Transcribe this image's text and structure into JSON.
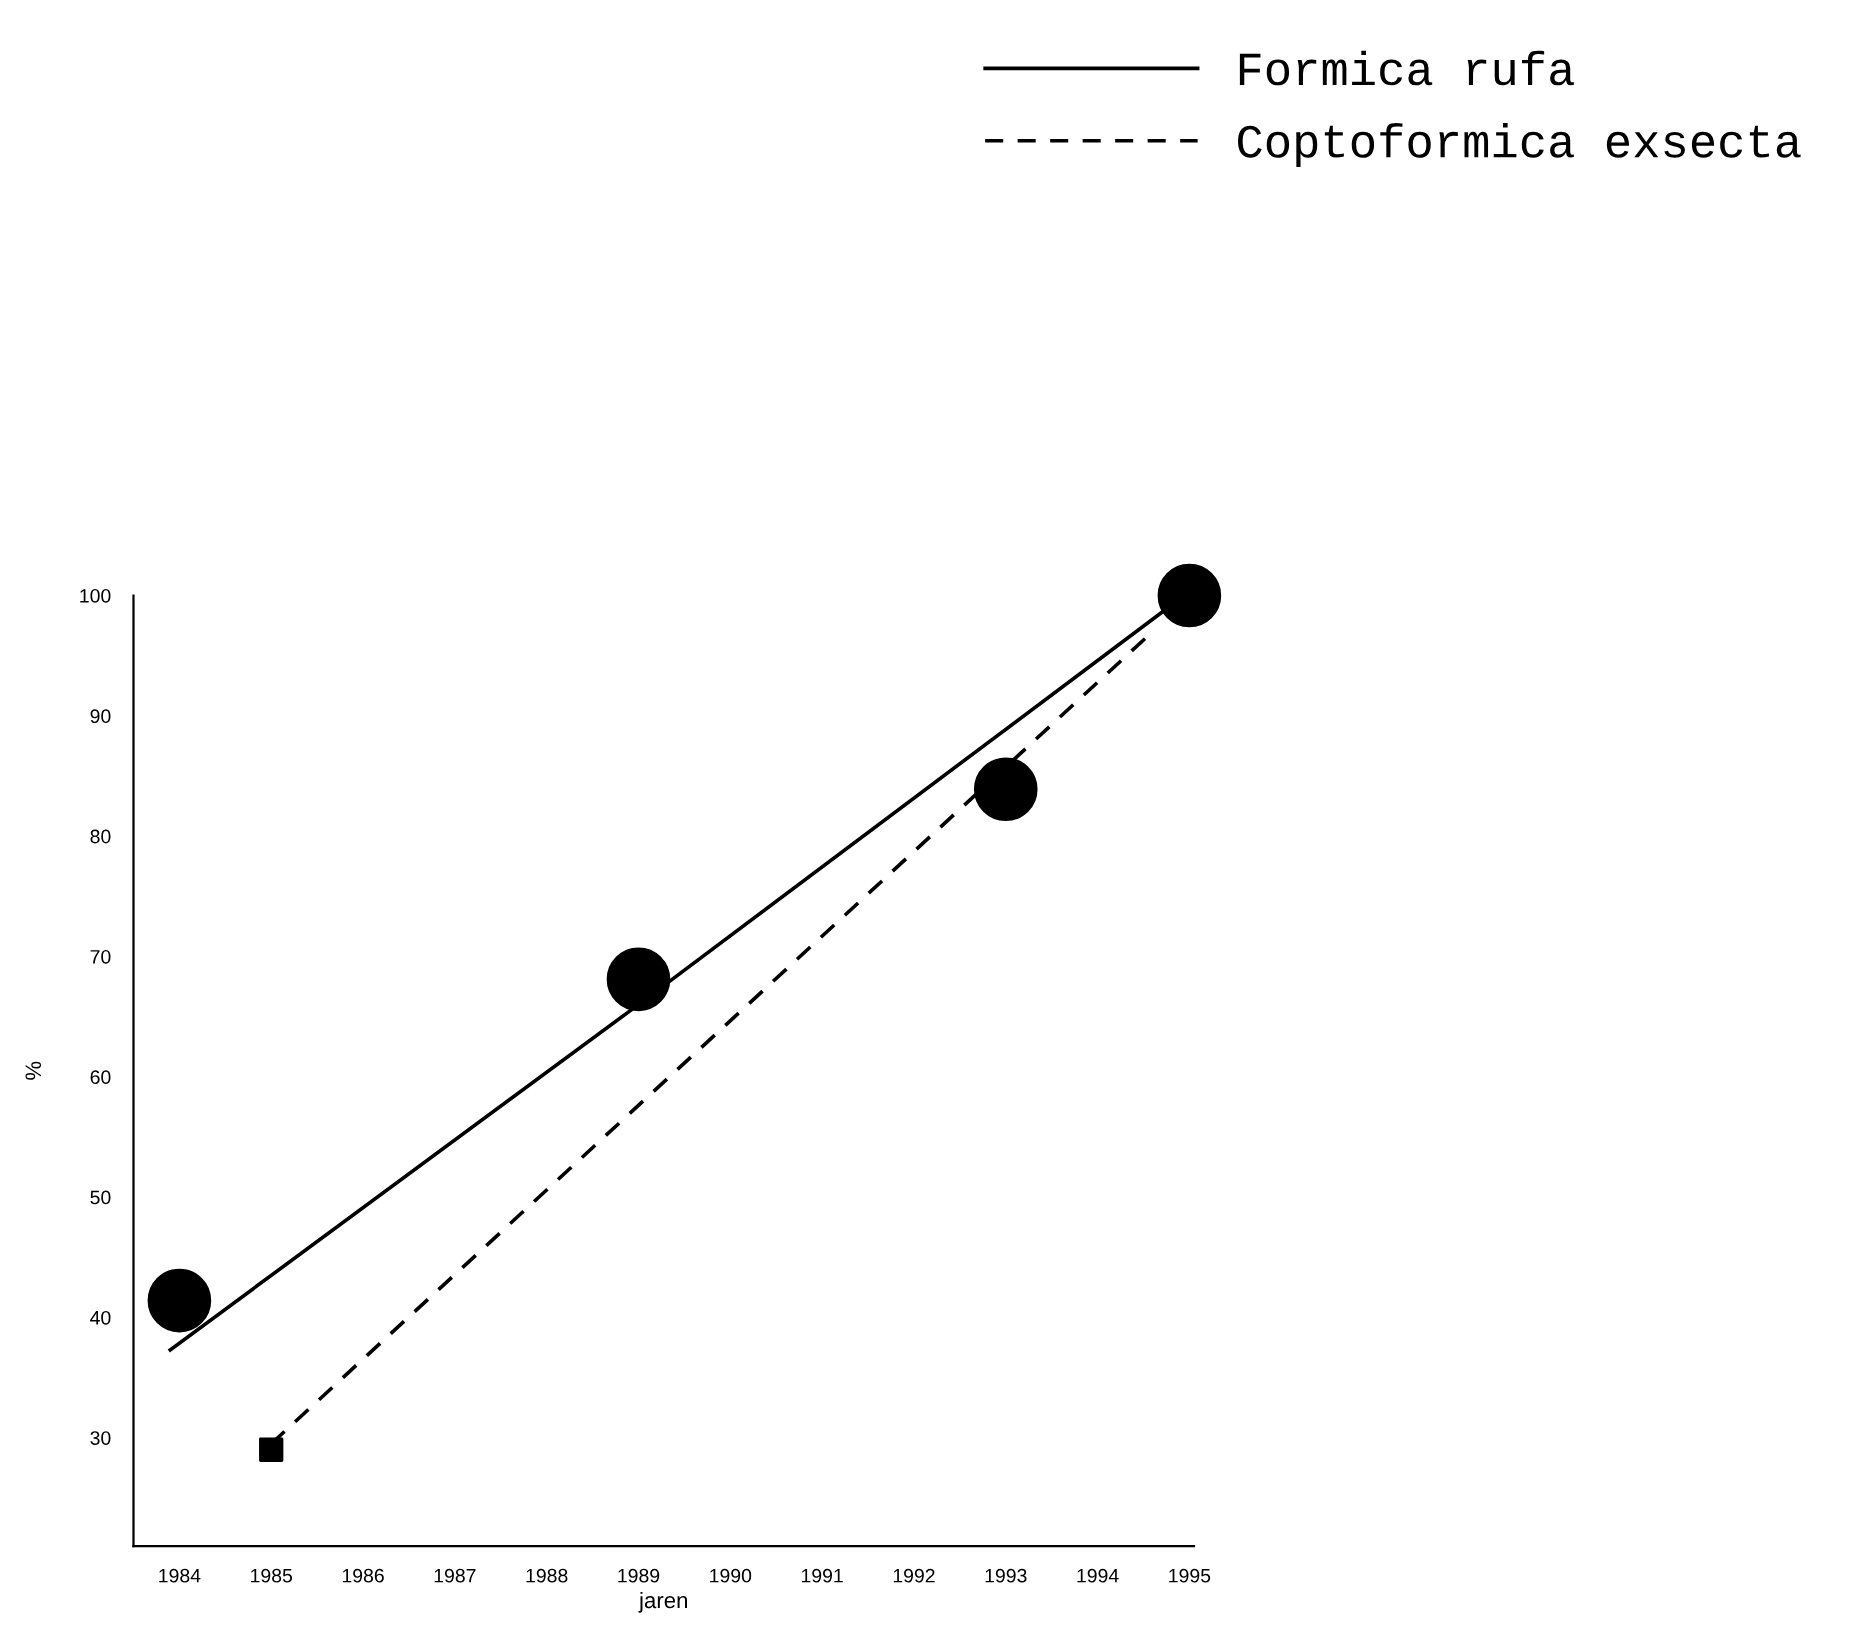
{
  "chart_data": {
    "type": "line",
    "xlabel": "jaren",
    "ylabel": "%",
    "xlim": [
      1983.5,
      1995.05
    ],
    "xticks": [
      1984,
      1985,
      1986,
      1987,
      1988,
      1989,
      1990,
      1991,
      1992,
      1993,
      1994,
      1995
    ],
    "ylim": [
      21,
      100
    ],
    "yticks": [
      30,
      40,
      50,
      60,
      70,
      80,
      90,
      100
    ],
    "grid": false,
    "legend": "top right",
    "series": [
      {
        "name": "Formica rufa",
        "color": "#000000",
        "line_style": "solid",
        "marker": "none",
        "x": [
          1983.9,
          1989,
          1994.7
        ],
        "values": [
          37.3,
          66,
          98.6
        ]
      },
      {
        "name": "Coptoformica exsecta",
        "color": "#000000",
        "line_style": "dashed",
        "marker": "none",
        "x": [
          1985,
          1994.6
        ],
        "values": [
          29.5,
          97
        ]
      },
      {
        "type": "scatter",
        "color": "#000000",
        "marker": "circle",
        "x": [
          1984,
          1989,
          1993,
          1995
        ],
        "values": [
          41.4,
          68.1,
          83.9,
          100
        ]
      },
      {
        "type": "scatter",
        "color": "#000000",
        "marker": "square",
        "x": [
          1985
        ],
        "values": [
          29
        ]
      }
    ]
  }
}
